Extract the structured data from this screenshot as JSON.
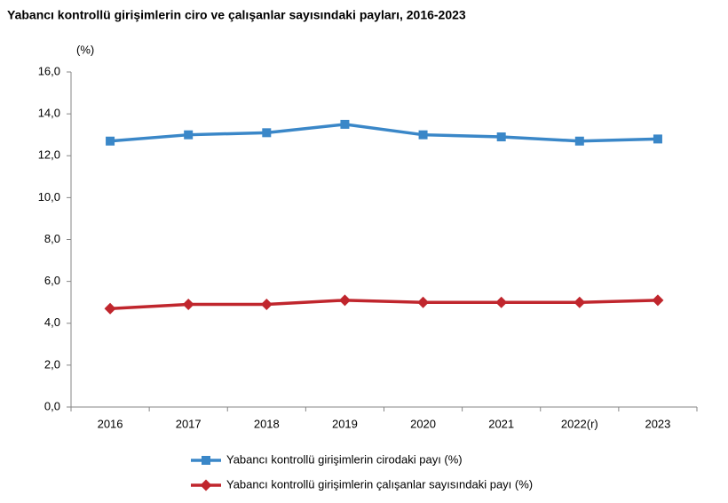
{
  "chart_data": {
    "type": "line",
    "title": "Yabancı kontrollü girişimlerin ciro ve çalışanlar sayısındaki payları, 2016-2023",
    "y_label": "(%)",
    "categories": [
      "2016",
      "2017",
      "2018",
      "2019",
      "2020",
      "2021",
      "2022(r)",
      "2023"
    ],
    "series": [
      {
        "name": "Yabancı kontrollü girişimlerin cirodaki payı (%)",
        "color": "#3a87c8",
        "marker": "square",
        "values": [
          12.7,
          13.0,
          13.1,
          13.5,
          13.0,
          12.9,
          12.7,
          12.8
        ]
      },
      {
        "name": "Yabancı kontrollü girişimlerin çalışanlar sayısındaki payı (%)",
        "color": "#c0262d",
        "marker": "diamond",
        "values": [
          4.7,
          4.9,
          4.9,
          5.1,
          5.0,
          5.0,
          5.0,
          5.1
        ]
      }
    ],
    "ylim": [
      0,
      16
    ],
    "yticks": [
      {
        "value": 0,
        "label": "0,0"
      },
      {
        "value": 2,
        "label": "2,0"
      },
      {
        "value": 4,
        "label": "4,0"
      },
      {
        "value": 6,
        "label": "6,0"
      },
      {
        "value": 8,
        "label": "8,0"
      },
      {
        "value": 10,
        "label": "10,0"
      },
      {
        "value": 12,
        "label": "12,0"
      },
      {
        "value": 14,
        "label": "14,0"
      },
      {
        "value": 16,
        "label": "16,0"
      }
    ],
    "grid": false,
    "legend": "bottom"
  }
}
